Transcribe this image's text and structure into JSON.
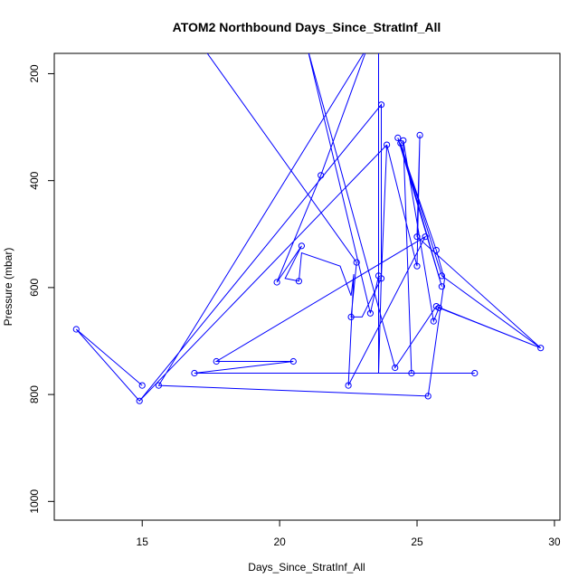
{
  "chart_data": {
    "type": "line",
    "title": "ATOM2 Northbound Days_Since_StratInf_All",
    "xlabel": "Days_Since_StratInf_All",
    "ylabel": "Pressure (mbar)",
    "xlim": [
      11.8,
      30.2
    ],
    "ylim": [
      1035,
      162
    ],
    "y_reversed": true,
    "xticks": [
      15,
      20,
      25,
      30
    ],
    "yticks": [
      200,
      400,
      600,
      800,
      1000
    ],
    "grid": false,
    "legend": "none",
    "series": [
      {
        "color": "#0000ff",
        "marker": "open-circle",
        "points": [
          {
            "x": 17.2,
            "y": 150,
            "m": false
          },
          {
            "x": 22.8,
            "y": 553,
            "m": true
          },
          {
            "x": 22.6,
            "y": 655,
            "m": true
          },
          {
            "x": 22.6,
            "y": 655,
            "m": false
          },
          {
            "x": 23.0,
            "y": 655,
            "m": false
          },
          {
            "x": 23.7,
            "y": 583,
            "m": true
          },
          {
            "x": 23.9,
            "y": 333,
            "m": true
          },
          {
            "x": 25.0,
            "y": 560,
            "m": true
          },
          {
            "x": 25.1,
            "y": 315,
            "m": true
          },
          {
            "x": 25.0,
            "y": 505,
            "m": true
          },
          {
            "x": 29.5,
            "y": 713,
            "m": true
          },
          {
            "x": 25.9,
            "y": 578,
            "m": true
          },
          {
            "x": 24.4,
            "y": 330,
            "m": true
          },
          {
            "x": 25.9,
            "y": 598,
            "m": true
          },
          {
            "x": 24.3,
            "y": 320,
            "m": true
          },
          {
            "x": 25.7,
            "y": 530,
            "m": true
          },
          {
            "x": 26.0,
            "y": 585,
            "m": false
          },
          {
            "x": 25.4,
            "y": 803,
            "m": true
          },
          {
            "x": 15.6,
            "y": 783,
            "m": true
          },
          {
            "x": 23.2,
            "y": 150,
            "m": false
          },
          {
            "x": 21.5,
            "y": 390,
            "m": true
          },
          {
            "x": 19.9,
            "y": 590,
            "m": true
          },
          {
            "x": 20.8,
            "y": 522,
            "m": true
          },
          {
            "x": 20.2,
            "y": 583,
            "m": false
          },
          {
            "x": 20.7,
            "y": 588,
            "m": true
          },
          {
            "x": 20.8,
            "y": 535,
            "m": false
          },
          {
            "x": 22.2,
            "y": 560,
            "m": false
          },
          {
            "x": 22.6,
            "y": 615,
            "m": false
          },
          {
            "x": 22.7,
            "y": 575,
            "m": false
          },
          {
            "x": 22.5,
            "y": 783,
            "m": true
          },
          {
            "x": 25.3,
            "y": 505,
            "m": true
          },
          {
            "x": 17.7,
            "y": 738,
            "m": true
          },
          {
            "x": 20.5,
            "y": 738,
            "m": true
          },
          {
            "x": 16.9,
            "y": 760,
            "m": true
          },
          {
            "x": 27.1,
            "y": 760,
            "m": true
          },
          {
            "x": 24.8,
            "y": 760,
            "m": true
          },
          {
            "x": 24.5,
            "y": 325,
            "m": true
          },
          {
            "x": 25.6,
            "y": 663,
            "m": true
          },
          {
            "x": 25.8,
            "y": 638,
            "m": true
          },
          {
            "x": 29.5,
            "y": 713,
            "m": false
          },
          {
            "x": 25.7,
            "y": 635,
            "m": true
          },
          {
            "x": 24.2,
            "y": 750,
            "m": true
          },
          {
            "x": 21.0,
            "y": 150,
            "m": false
          },
          {
            "x": 23.3,
            "y": 648,
            "m": true
          },
          {
            "x": 23.6,
            "y": 578,
            "m": true
          },
          {
            "x": 23.6,
            "y": 150,
            "m": false
          },
          {
            "x": 23.6,
            "y": 760,
            "m": false
          },
          {
            "x": 23.7,
            "y": 580,
            "m": false
          },
          {
            "x": 23.7,
            "y": 258,
            "m": true
          },
          {
            "x": 14.9,
            "y": 812,
            "m": true
          },
          {
            "x": 12.6,
            "y": 678,
            "m": true
          },
          {
            "x": 15.0,
            "y": 783,
            "m": true
          },
          {
            "x": 12.6,
            "y": 678,
            "m": false
          },
          {
            "x": 14.9,
            "y": 812,
            "m": false
          },
          {
            "x": 23.9,
            "y": 333,
            "m": false
          }
        ]
      }
    ]
  }
}
